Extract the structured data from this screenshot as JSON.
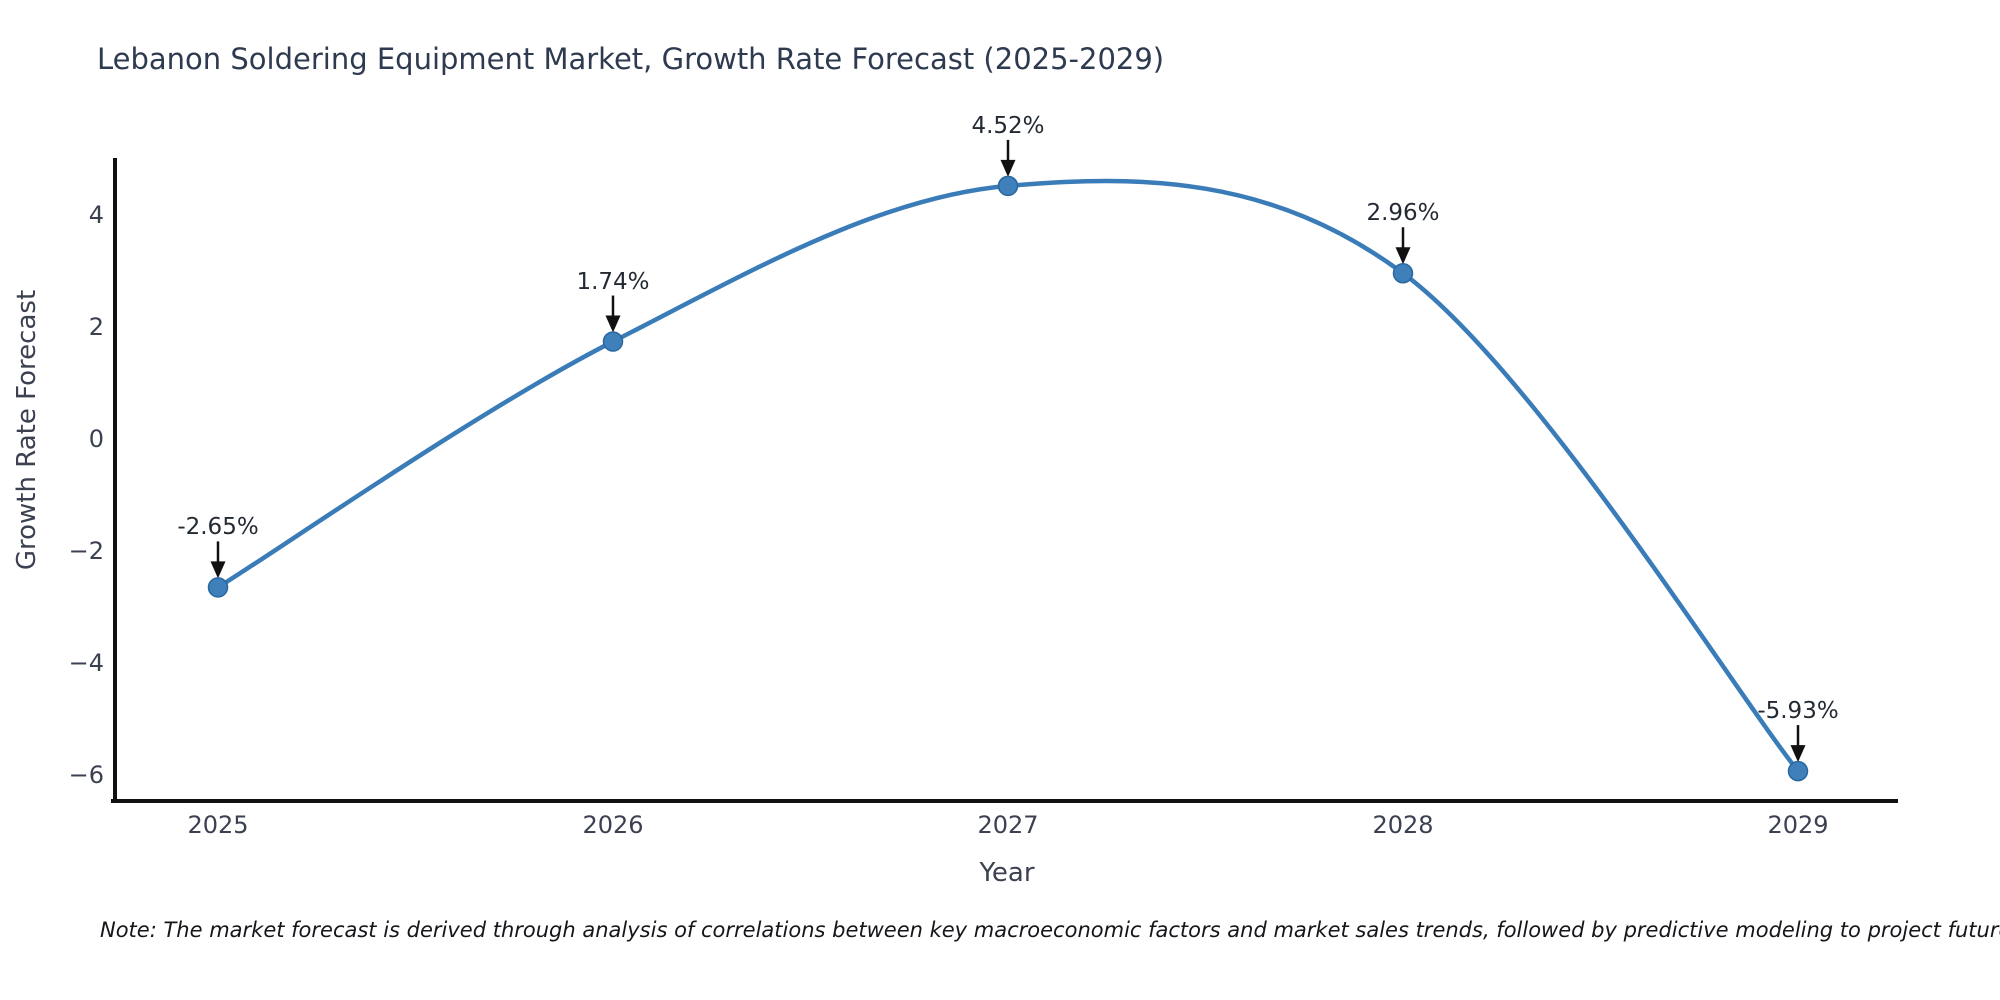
{
  "title": "Lebanon Soldering Equipment Market, Growth Rate Forecast (2025-2029)",
  "note": "Note: The market forecast is derived through analysis of correlations between key macroeconomic factors and market sales trends, followed by predictive modeling to project future sales",
  "chart_data": {
    "type": "line",
    "title": "Lebanon Soldering Equipment Market, Growth Rate Forecast (2025-2029)",
    "x": [
      2025,
      2026,
      2027,
      2028,
      2029
    ],
    "series": [
      {
        "name": "Growth Rate Forecast",
        "values": [
          -2.65,
          1.74,
          4.52,
          2.96,
          -5.93
        ]
      }
    ],
    "point_labels": [
      "-2.65%",
      "1.74%",
      "4.52%",
      "2.96%",
      "-5.93%"
    ],
    "xlabel": "Year",
    "ylabel": "Growth Rate Forecast",
    "yticks": [
      4,
      2,
      0,
      -2,
      -4,
      -6
    ],
    "ylim": [
      -6.8,
      5.0
    ],
    "grid": false,
    "legend": "none",
    "line_shape": "spline",
    "annotation_style": "value label with down arrow onto each marker",
    "colors": {
      "line": "#3a7cb8",
      "marker_fill": "#3f7fba",
      "marker_edge": "#2a67a0",
      "arrow": "#111111",
      "axis": "#111111",
      "title_text": "#2e3a50",
      "tick_text": "#3b4150"
    }
  }
}
